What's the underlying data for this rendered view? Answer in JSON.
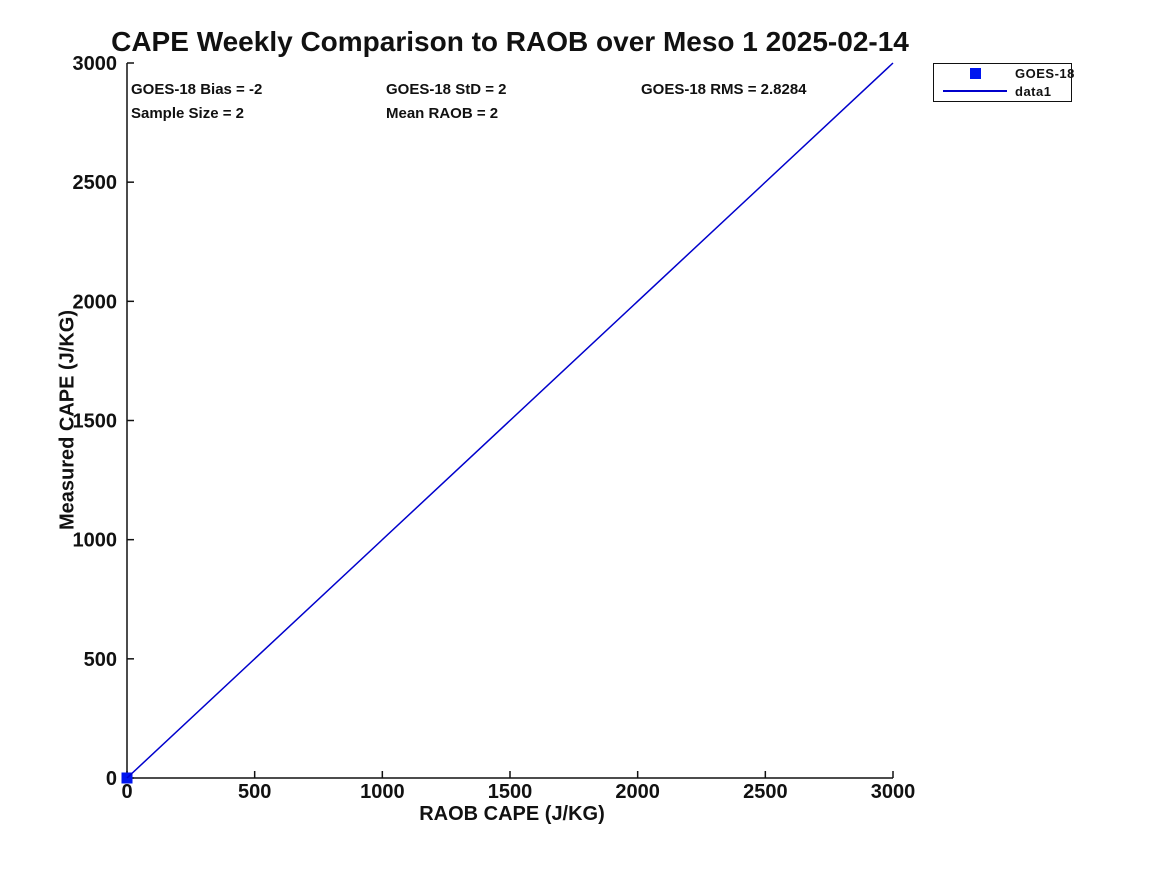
{
  "figure": {
    "background": "#ffffff",
    "text_color": "#111111"
  },
  "chart_data": {
    "type": "scatter",
    "title": "CAPE Weekly Comparison to RAOB over Meso 1 2025-02-14",
    "xlabel": "RAOB CAPE (J/KG)",
    "ylabel": "Measured CAPE (J/KG)",
    "xlim": [
      0,
      3000
    ],
    "ylim": [
      0,
      3000
    ],
    "xticks": [
      0,
      500,
      1000,
      1500,
      2000,
      2500,
      3000
    ],
    "yticks": [
      0,
      500,
      1000,
      1500,
      2000,
      2500,
      3000
    ],
    "grid": false,
    "axis_color": "#111111",
    "series": [
      {
        "name": "GOES-18",
        "type": "scatter",
        "marker": "square",
        "color": "#0016ef",
        "points": [
          [
            0,
            0
          ]
        ]
      },
      {
        "name": "data1",
        "type": "line",
        "color": "#0000cc",
        "points": [
          [
            0,
            0
          ],
          [
            3000,
            3000
          ]
        ]
      }
    ],
    "annotations": [
      {
        "text": "GOES-18 Bias = -2"
      },
      {
        "text": "GOES-18 StD = 2"
      },
      {
        "text": "GOES-18 RMS = 2.8284"
      },
      {
        "text": "Sample Size = 2"
      },
      {
        "text": "Mean RAOB = 2"
      }
    ],
    "legend": {
      "position": "upper-right-outside",
      "entries": [
        {
          "label": "GOES-18",
          "glyph": "square",
          "color": "#0016ef"
        },
        {
          "label": "data1",
          "glyph": "line",
          "color": "#0000cc"
        }
      ]
    }
  }
}
